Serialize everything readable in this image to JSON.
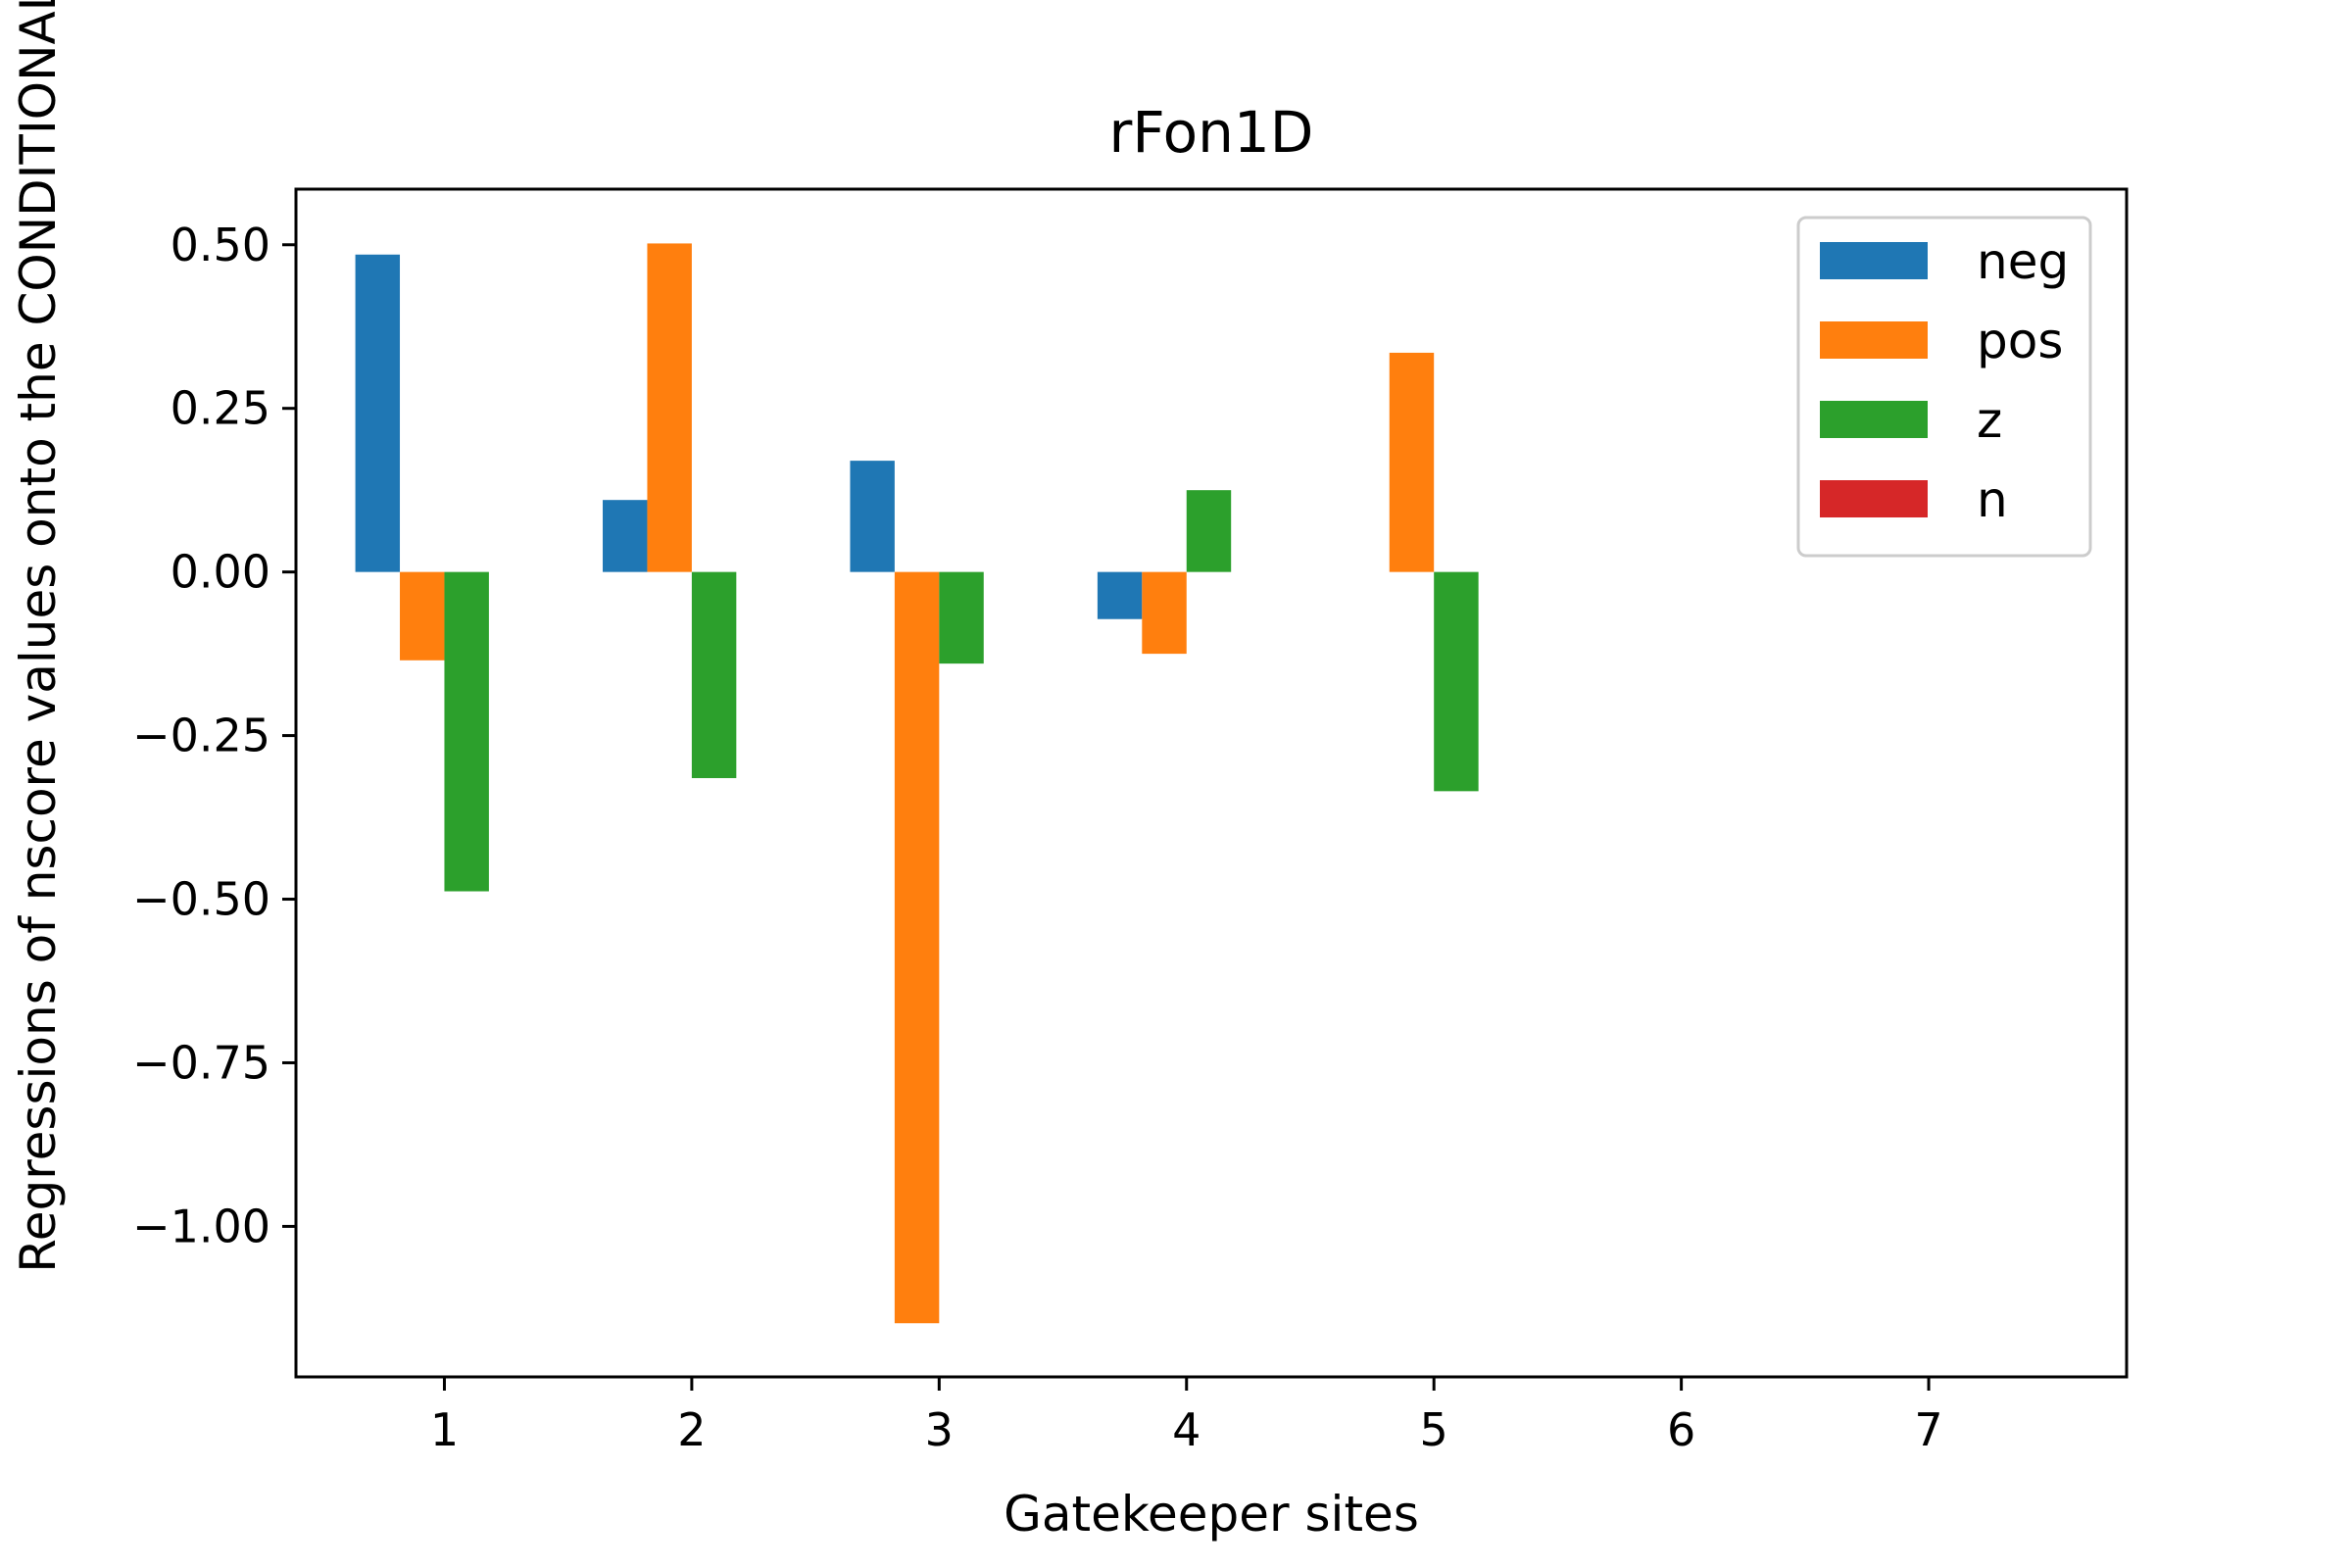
{
  "chart_data": {
    "type": "bar",
    "title": "rFon1D",
    "xlabel": "Gatekeeper sites",
    "ylabel": "Regressions of nscore values onto the CONDITIONAL basis",
    "categories": [
      "1",
      "2",
      "3",
      "4",
      "5",
      "6",
      "7"
    ],
    "x": [
      1,
      2,
      3,
      4,
      5,
      6,
      7
    ],
    "series": [
      {
        "name": "neg",
        "color": "#1f77b4",
        "values": [
          0.485,
          0.11,
          0.17,
          -0.072,
          0.0,
          0.0,
          0.0
        ]
      },
      {
        "name": "pos",
        "color": "#ff7f0e",
        "values": [
          -0.135,
          0.502,
          -1.148,
          -0.125,
          0.335,
          0.0,
          0.0
        ]
      },
      {
        "name": "z",
        "color": "#2ca02c",
        "values": [
          -0.488,
          -0.315,
          -0.14,
          0.125,
          -0.335,
          0.0,
          0.0
        ]
      },
      {
        "name": "n",
        "color": "#d62728",
        "values": [
          0.0,
          0.0,
          0.0,
          0.0,
          0.0,
          0.0,
          0.0
        ]
      }
    ],
    "yticks": [
      "0.50",
      "0.25",
      "0.00",
      "−0.25",
      "−0.50",
      "−0.75",
      "−1.00"
    ],
    "ytick_values": [
      0.5,
      0.25,
      0.0,
      -0.25,
      -0.5,
      -0.75,
      -1.0
    ],
    "xlim": [
      0.4,
      7.8
    ],
    "ylim": [
      -1.23,
      0.585
    ],
    "grid": false,
    "legend_position": "top-right"
  }
}
